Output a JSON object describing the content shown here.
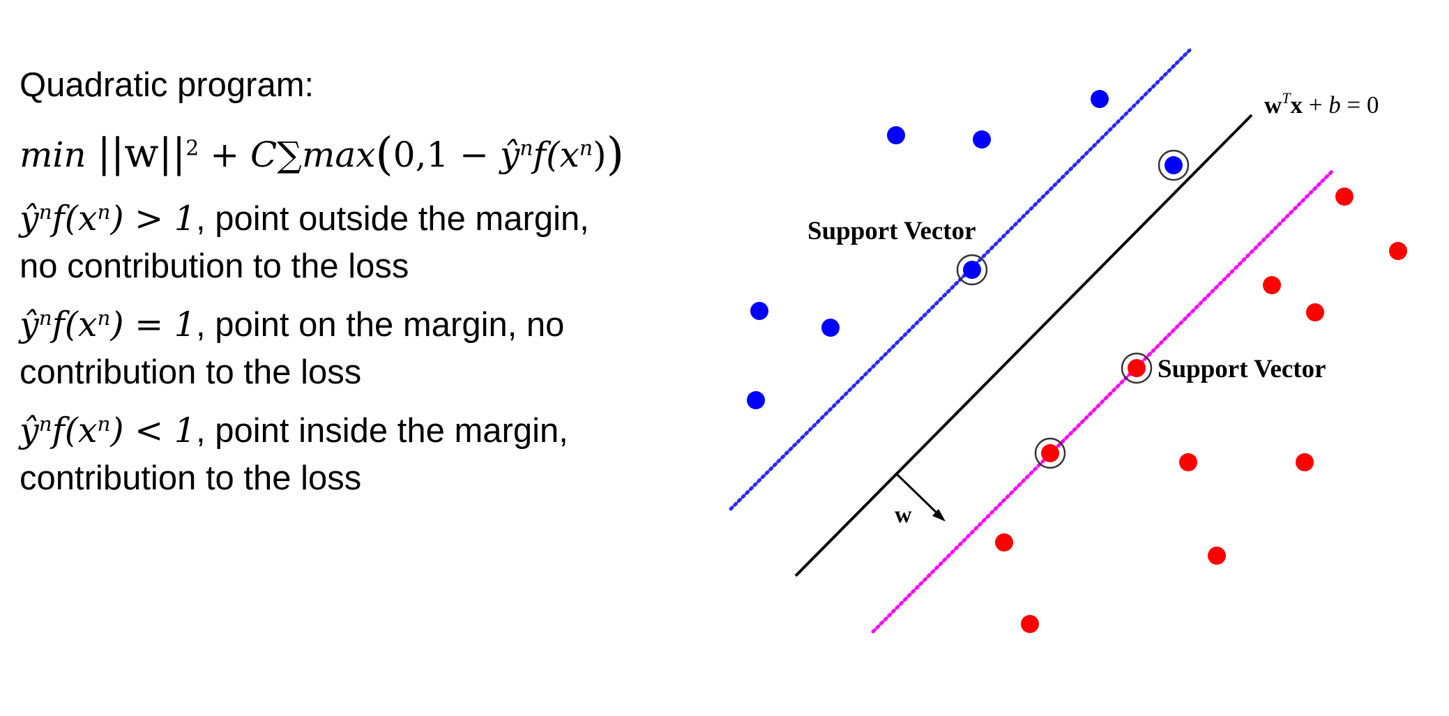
{
  "text": {
    "title": "Quadratic program:",
    "objective": {
      "min": "min",
      "norm": "||w||",
      "exp": "2",
      "plus": " + ",
      "c": "C",
      "sum": "∑",
      "max": "max",
      "open": "(",
      "args": "0,1 − ",
      "yhat": "ŷ",
      "n_sup": "n",
      "f": "f",
      "x_open": "(x",
      "x_sup": "n",
      "x_close": ")",
      "close": ")"
    },
    "conditions": [
      {
        "lhs_yhat": "ŷ",
        "lhs_n": "n",
        "lhs_f": "f",
        "lhs_x": "(x",
        "lhs_xn": "n",
        "lhs_close": ")",
        "op": " > 1",
        "line1_rest": ", point outside the margin,",
        "line2": "no contribution to the loss"
      },
      {
        "lhs_yhat": "ŷ",
        "lhs_n": "n",
        "lhs_f": "f",
        "lhs_x": "(x",
        "lhs_xn": "n",
        "lhs_close": ")",
        "op": " = 1",
        "line1_rest": ", point on the margin, no",
        "line2": "contribution to the loss"
      },
      {
        "lhs_yhat": "ŷ",
        "lhs_n": "n",
        "lhs_f": "f",
        "lhs_x": "(x",
        "lhs_xn": "n",
        "lhs_close": ")",
        "op": " < 1",
        "line1_rest": ", point inside the margin,",
        "line2": "contribution to the loss"
      }
    ]
  },
  "diagram": {
    "support_vector_label_top": "Support Vector",
    "support_vector_label_bottom": "Support Vector",
    "w_label": "w",
    "equation": {
      "w": "w",
      "t": "T",
      "x": "x",
      "rest": " + ",
      "b": "b",
      "eq": " = 0"
    },
    "colors": {
      "class_positive": "#0000ff",
      "class_negative": "#ff0000",
      "margin_positive": "#2a2aff",
      "margin_negative": "#ff00ff",
      "boundary": "#000000"
    }
  }
}
